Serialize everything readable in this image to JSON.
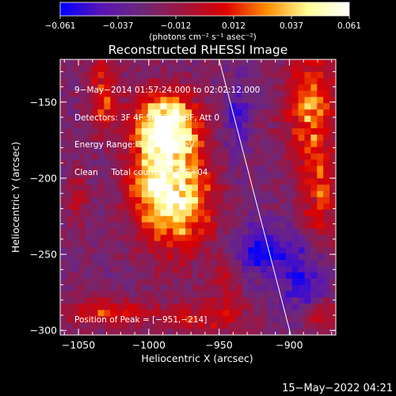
{
  "chart_data": {
    "type": "heatmap",
    "title": "Reconstructed RHESSI Image",
    "xlabel": "Heliocentric X (arcsec)",
    "ylabel": "Heliocentric Y (arcsec)",
    "xlim": [
      -1063,
      -867
    ],
    "ylim": [
      -303,
      -122
    ],
    "x_ticks": [
      -1050,
      -1000,
      -950,
      -900
    ],
    "y_ticks": [
      -300,
      -250,
      -200,
      -150
    ],
    "x_tick_labels": [
      "−1050",
      "−1000",
      "−950",
      "−900"
    ],
    "y_tick_labels": [
      "−300",
      "−250",
      "−200",
      "−150"
    ],
    "colorbar": {
      "range": [
        -0.061,
        0.061
      ],
      "tick_labels": [
        "−0.061",
        "−0.037",
        "−0.012",
        "0.012",
        "0.037",
        "0.061"
      ],
      "unit_label": "(photons cm⁻² s⁻¹ asec⁻²)",
      "colors": [
        "#0000ff",
        "#5a14b4",
        "#6e2878",
        "#a0143c",
        "#dc0000",
        "#ff8c00",
        "#ffff96",
        "#ffffff"
      ]
    },
    "annotations": [
      "9−May−2014 01:57:24.000 to 02:02:12.000",
      "Detectors: 3F 4F 5F 6F 7F 8F, Att 0",
      "Energy Range: 3.0 − 6.0 keV",
      "Clean     Total counts: 7.33E+04"
    ],
    "peak_label": "Position of Peak = [−951,−214]",
    "peak": [
      -951,
      -214
    ],
    "limb_line": [
      [
        -950,
        -122
      ],
      [
        -899,
        -303
      ]
    ],
    "sources": [
      {
        "x": -985,
        "y": -165,
        "sx": 14,
        "sy": 14,
        "amp": 1.05
      },
      {
        "x": -978,
        "y": -212,
        "sx": 16,
        "sy": 24,
        "amp": 0.9
      },
      {
        "x": -1000,
        "y": -195,
        "sx": 12,
        "sy": 28,
        "amp": 0.55
      },
      {
        "x": -1032,
        "y": -145,
        "sx": 8,
        "sy": 18,
        "amp": 0.45
      },
      {
        "x": -885,
        "y": -155,
        "sx": 13,
        "sy": 26,
        "amp": 0.6
      },
      {
        "x": -878,
        "y": -215,
        "sx": 9,
        "sy": 22,
        "amp": 0.45
      },
      {
        "x": -1030,
        "y": -288,
        "sx": 24,
        "sy": 6,
        "amp": 0.45
      },
      {
        "x": -965,
        "y": -292,
        "sx": 20,
        "sy": 6,
        "amp": 0.35
      },
      {
        "x": -945,
        "y": -275,
        "sx": 9,
        "sy": 15,
        "amp": 0.3
      },
      {
        "x": -876,
        "y": -290,
        "sx": 10,
        "sy": 7,
        "amp": 0.4
      },
      {
        "x": -1050,
        "y": -212,
        "sx": 6,
        "sy": 12,
        "amp": 0.25
      },
      {
        "x": -920,
        "y": -248,
        "sx": 14,
        "sy": 12,
        "amp": -0.45
      },
      {
        "x": -890,
        "y": -265,
        "sx": 12,
        "sy": 18,
        "amp": -0.4
      },
      {
        "x": -937,
        "y": -160,
        "sx": 6,
        "sy": 20,
        "amp": -0.3
      }
    ]
  },
  "footer": {
    "timestamp": "15−May−2022 04:21"
  }
}
